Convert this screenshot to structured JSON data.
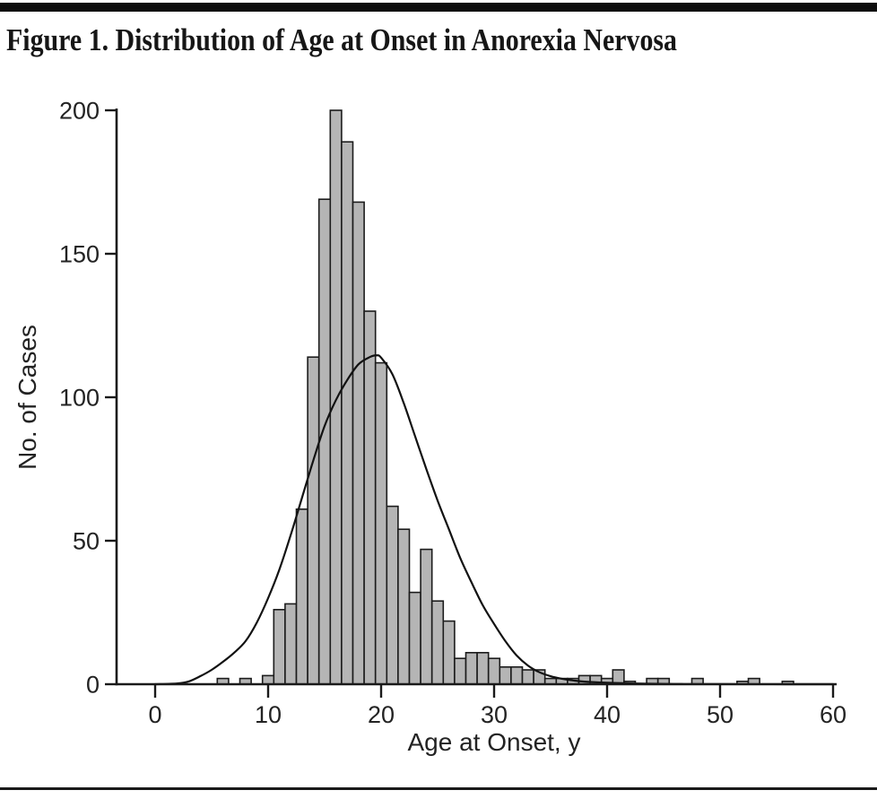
{
  "figure": {
    "title": "Figure 1. Distribution of Age at Onset in Anorexia Nervosa"
  },
  "chart_data": {
    "type": "bar",
    "subtype": "histogram-with-fitted-curve",
    "title": "Figure 1. Distribution of Age at Onset in Anorexia Nervosa",
    "xlabel": "Age at Onset, y",
    "ylabel": "No. of Cases",
    "xlim": [
      -3.5,
      60.5
    ],
    "ylim": [
      0,
      200
    ],
    "x_ticks": [
      0,
      10,
      20,
      30,
      40,
      50,
      60
    ],
    "y_ticks": [
      0,
      50,
      100,
      150,
      200
    ],
    "grid": "off",
    "legend": "none",
    "bin_width_years": 1,
    "bars": [
      {
        "age": 6,
        "count": 2
      },
      {
        "age": 8,
        "count": 2
      },
      {
        "age": 10,
        "count": 3
      },
      {
        "age": 11,
        "count": 26
      },
      {
        "age": 12,
        "count": 28
      },
      {
        "age": 13,
        "count": 61
      },
      {
        "age": 14,
        "count": 114
      },
      {
        "age": 15,
        "count": 169
      },
      {
        "age": 16,
        "count": 200
      },
      {
        "age": 17,
        "count": 189
      },
      {
        "age": 18,
        "count": 168
      },
      {
        "age": 19,
        "count": 130
      },
      {
        "age": 20,
        "count": 112
      },
      {
        "age": 21,
        "count": 62
      },
      {
        "age": 22,
        "count": 54
      },
      {
        "age": 23,
        "count": 32
      },
      {
        "age": 24,
        "count": 47
      },
      {
        "age": 25,
        "count": 29
      },
      {
        "age": 26,
        "count": 22
      },
      {
        "age": 27,
        "count": 9
      },
      {
        "age": 28,
        "count": 11
      },
      {
        "age": 29,
        "count": 11
      },
      {
        "age": 30,
        "count": 9
      },
      {
        "age": 31,
        "count": 6
      },
      {
        "age": 32,
        "count": 6
      },
      {
        "age": 33,
        "count": 5
      },
      {
        "age": 34,
        "count": 5
      },
      {
        "age": 35,
        "count": 2
      },
      {
        "age": 36,
        "count": 2
      },
      {
        "age": 37,
        "count": 2
      },
      {
        "age": 38,
        "count": 3
      },
      {
        "age": 39,
        "count": 3
      },
      {
        "age": 40,
        "count": 2
      },
      {
        "age": 41,
        "count": 5
      },
      {
        "age": 42,
        "count": 1
      },
      {
        "age": 44,
        "count": 2
      },
      {
        "age": 45,
        "count": 2
      },
      {
        "age": 48,
        "count": 2
      },
      {
        "age": 52,
        "count": 1
      },
      {
        "age": 53,
        "count": 2
      },
      {
        "age": 56,
        "count": 1
      }
    ],
    "fitted_curve": {
      "description": "smooth right-skewed (lognormal-like) fitted distribution curve, peak ~114.5 cases at age ~19.5",
      "points": [
        [
          0,
          0
        ],
        [
          2,
          0.3
        ],
        [
          3,
          1
        ],
        [
          4,
          2.8
        ],
        [
          5,
          5
        ],
        [
          6,
          7.8
        ],
        [
          7,
          11
        ],
        [
          8,
          15
        ],
        [
          9,
          21.5
        ],
        [
          10,
          30
        ],
        [
          11,
          40
        ],
        [
          12,
          52
        ],
        [
          13,
          65
        ],
        [
          14,
          78
        ],
        [
          15,
          90
        ],
        [
          16,
          99
        ],
        [
          17,
          106
        ],
        [
          18,
          111.5
        ],
        [
          19,
          114
        ],
        [
          19.6,
          114.6
        ],
        [
          20,
          113.8
        ],
        [
          21,
          108
        ],
        [
          22,
          98
        ],
        [
          23,
          86.5
        ],
        [
          24,
          75
        ],
        [
          25,
          64
        ],
        [
          26,
          54
        ],
        [
          27,
          44
        ],
        [
          28,
          35.5
        ],
        [
          29,
          27.5
        ],
        [
          30,
          21
        ],
        [
          31,
          15
        ],
        [
          32,
          10
        ],
        [
          33,
          6.5
        ],
        [
          34,
          4.2
        ],
        [
          35,
          2.8
        ],
        [
          36,
          1.9
        ],
        [
          37,
          1.3
        ],
        [
          38,
          0.9
        ],
        [
          40,
          0.5
        ],
        [
          42,
          0.3
        ],
        [
          44,
          0.15
        ],
        [
          46,
          0.08
        ],
        [
          48,
          0.05
        ],
        [
          52,
          0.02
        ],
        [
          56,
          0.01
        ],
        [
          60,
          0
        ]
      ]
    },
    "colors": {
      "bar_fill": "#b5b5b5",
      "bar_stroke": "#1c1c1c",
      "curve_stroke": "#121212",
      "axis_stroke": "#1a1a1a",
      "top_rule": "#0d0d0d",
      "bottom_rule": "#1a1a1a",
      "background": "#ffffff",
      "text": "#232323"
    }
  }
}
